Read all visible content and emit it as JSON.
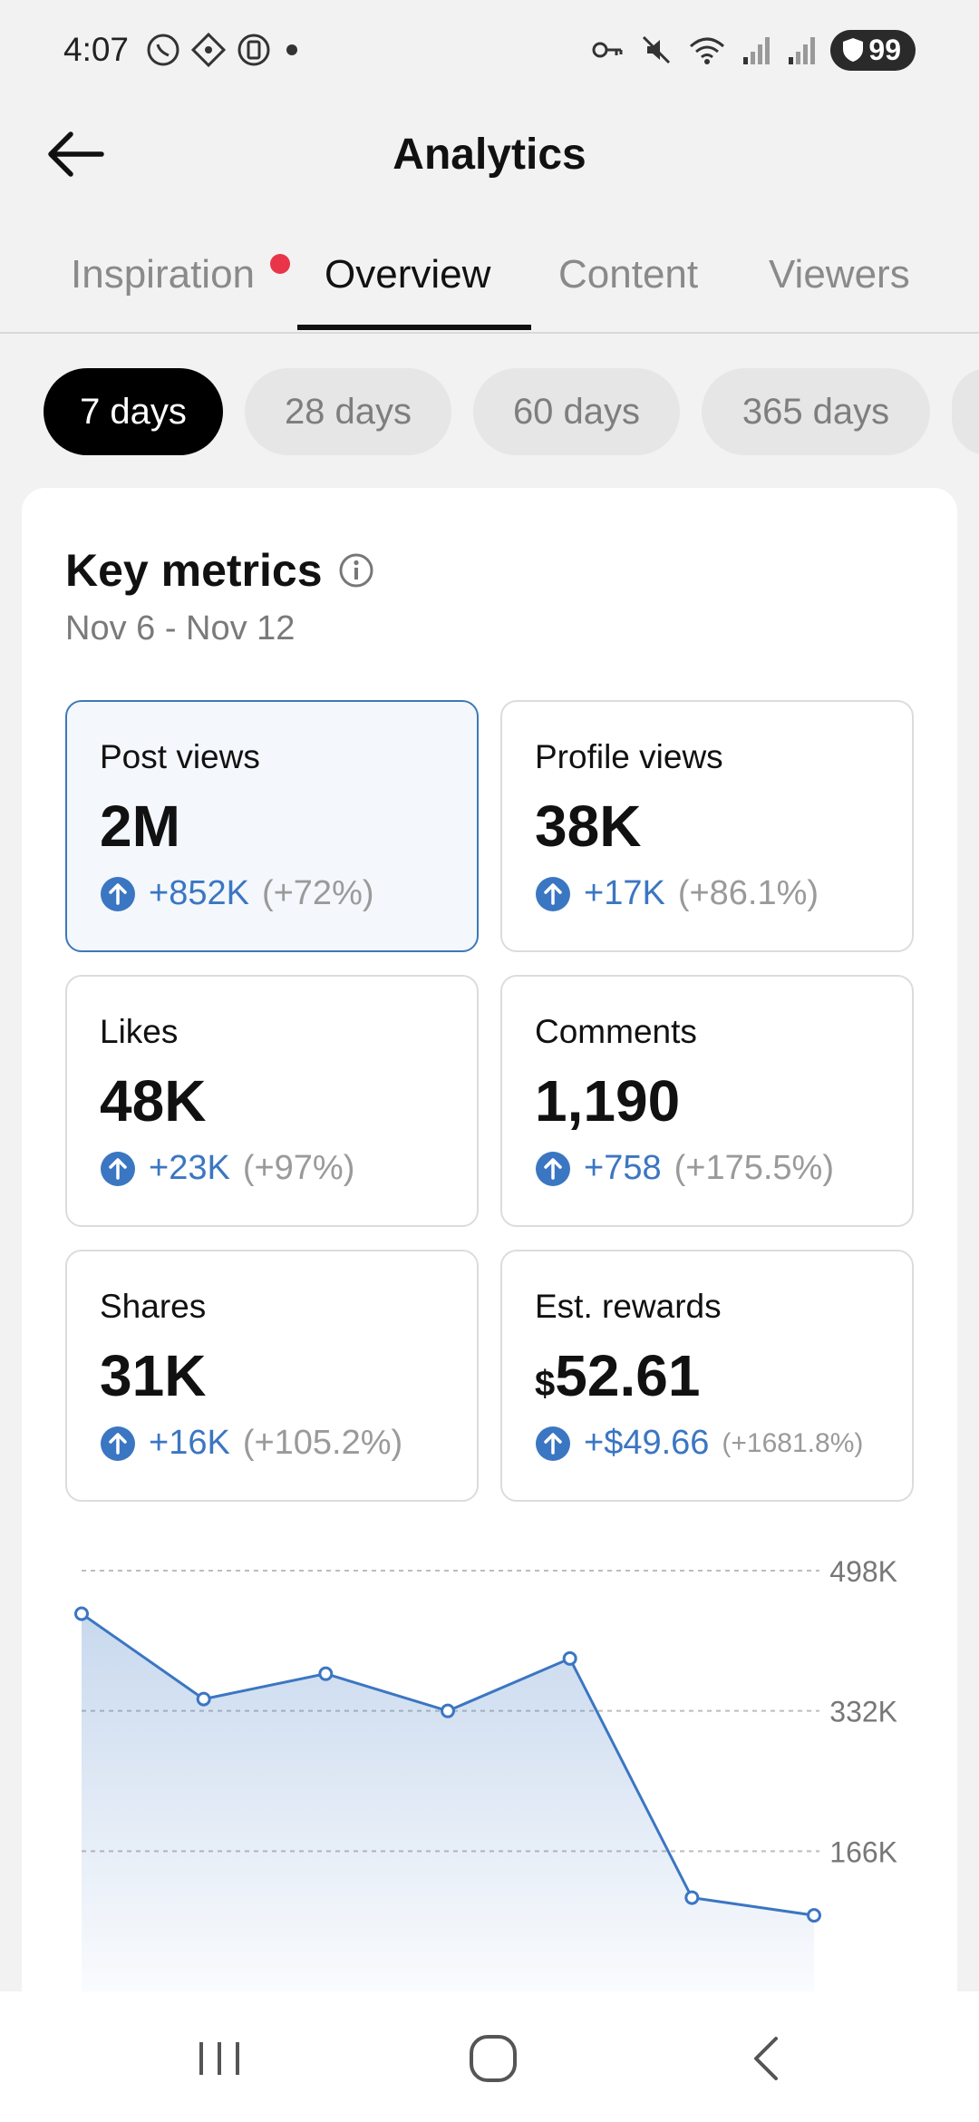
{
  "status_bar": {
    "time": "4:07",
    "battery": "99",
    "left_icons": [
      "whatsapp-icon",
      "app-icon",
      "clipboard-icon",
      "dot-icon"
    ],
    "right_icons": [
      "key-icon",
      "mute-icon",
      "wifi-icon",
      "signal-icon",
      "signal-icon"
    ]
  },
  "header": {
    "title": "Analytics"
  },
  "tabs": [
    {
      "label": "Inspiration",
      "badge": true
    },
    {
      "label": "Overview",
      "active": true
    },
    {
      "label": "Content"
    },
    {
      "label": "Viewers"
    }
  ],
  "ranges": [
    "7 days",
    "28 days",
    "60 days",
    "365 days"
  ],
  "key_metrics": {
    "title": "Key metrics",
    "date_range": "Nov 6 - Nov 12",
    "metrics": [
      {
        "label": "Post views",
        "value": "2M",
        "delta": "+852K",
        "pct": "(+72%)"
      },
      {
        "label": "Profile views",
        "value": "38K",
        "delta": "+17K",
        "pct": "(+86.1%)"
      },
      {
        "label": "Likes",
        "value": "48K",
        "delta": "+23K",
        "pct": "(+97%)"
      },
      {
        "label": "Comments",
        "value": "1,190",
        "delta": "+758",
        "pct": "(+175.5%)"
      },
      {
        "label": "Shares",
        "value": "31K",
        "delta": "+16K",
        "pct": "(+105.2%)"
      },
      {
        "label": "Est. rewards",
        "currency": "$",
        "value": "52.61",
        "delta": "+$49.66",
        "pct": "(+1681.8%)"
      }
    ]
  },
  "chart_data": {
    "type": "area",
    "x": [
      1,
      2,
      3,
      4,
      5,
      6,
      7
    ],
    "values": [
      447000,
      346000,
      376000,
      332000,
      394000,
      111000,
      90000
    ],
    "yticks": [
      "498K",
      "332K",
      "166K"
    ],
    "ylim": [
      0,
      498000
    ],
    "grid": true,
    "color": "#3b76c2"
  },
  "colors": {
    "accent": "#3b76c2",
    "badge": "#e8354a"
  }
}
